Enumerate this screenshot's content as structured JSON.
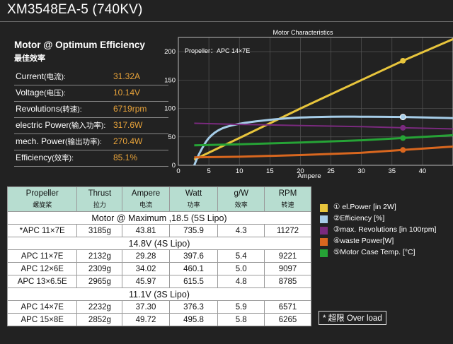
{
  "title": "XM3548EA-5 (740KV)",
  "optimum": {
    "heading": "Motor @ Optimum Efficiency",
    "subheading": "最佳效率",
    "rows": [
      {
        "label": "Current",
        "label_cn": "(电流):",
        "value": "31.32A"
      },
      {
        "label": "Voltage",
        "label_cn": "(电压):",
        "value": "10.14V"
      },
      {
        "label": "Revolutions",
        "label_cn": "(转速):",
        "value": "6719rpm"
      },
      {
        "label": "electric Power",
        "label_cn": "(输入功率):",
        "value": "317.6W"
      },
      {
        "label": "mech. Power",
        "label_cn": "(输出功率):",
        "value": "270.4W"
      },
      {
        "label": "Efficiency",
        "label_cn": "(效率):",
        "value": "85.1%"
      }
    ]
  },
  "colors": {
    "power": "#e8c53c",
    "efficiency": "#a6cde8",
    "revolutions": "#7a2a7e",
    "waste": "#d9671f",
    "temp": "#26a336",
    "highlight": "#e8a33a",
    "header_bg": "#b7ddd0"
  },
  "chart_data": {
    "type": "line",
    "title": "Motor Characteristics",
    "annotation": "Propeller：APC 14×7E",
    "xlabel": "Ampere",
    "ylabel": "",
    "xlim": [
      0,
      45
    ],
    "ylim": [
      0,
      225
    ],
    "x_ticks": [
      0,
      5,
      10,
      15,
      20,
      25,
      30,
      35,
      40
    ],
    "y_ticks": [
      0,
      50,
      100,
      150,
      200
    ],
    "grid": true,
    "marker_x": 36.8,
    "series": [
      {
        "name": "el.Power [in 2W]",
        "marker": "①",
        "color_key": "power",
        "x": [
          2.6,
          10,
          20,
          30,
          36.8,
          45
        ],
        "y": [
          10,
          48,
          100,
          150,
          184,
          222
        ]
      },
      {
        "name": "Efficiency [%]",
        "marker": "②",
        "color_key": "efficiency",
        "x": [
          2.6,
          3.5,
          5,
          7,
          10,
          15,
          20,
          25,
          30,
          36.8,
          45
        ],
        "y": [
          0,
          22,
          48,
          64,
          73,
          80,
          84,
          85.5,
          85.5,
          85,
          83
        ]
      },
      {
        "name": "max. Revolutions [in 100rpm]",
        "marker": "③",
        "color_key": "revolutions",
        "x": [
          2.6,
          10,
          20,
          30,
          36.8,
          45
        ],
        "y": [
          74,
          72,
          70,
          68,
          66,
          64
        ]
      },
      {
        "name": "waste Power[W]",
        "marker": "④",
        "color_key": "waste",
        "x": [
          2.6,
          10,
          20,
          30,
          36.8,
          45
        ],
        "y": [
          14,
          15,
          18,
          22,
          27,
          33
        ]
      },
      {
        "name": "Motor Case Temp. [°C]",
        "marker": "⑤",
        "color_key": "temp",
        "x": [
          2.6,
          10,
          20,
          30,
          36.8,
          45
        ],
        "y": [
          35,
          37,
          40,
          44,
          48,
          53
        ]
      }
    ]
  },
  "table": {
    "headers": [
      {
        "label": "Propeller",
        "sub": "螺旋桨"
      },
      {
        "label": "Thrust",
        "sub": "拉力"
      },
      {
        "label": "Ampere",
        "sub": "电流"
      },
      {
        "label": "Watt",
        "sub": "功率"
      },
      {
        "label": "g/W",
        "sub": "效率"
      },
      {
        "label": "RPM",
        "sub": "转速"
      }
    ],
    "sections": [
      {
        "title": "Motor @ Maximum ,18.5 (5S Lipo)",
        "rows": [
          [
            "*APC 11×7E",
            "3185g",
            "43.81",
            "735.9",
            "4.3",
            "11272"
          ]
        ]
      },
      {
        "title": "14.8V (4S Lipo)",
        "rows": [
          [
            "APC 11×7E",
            "2132g",
            "29.28",
            "397.6",
            "5.4",
            "9221"
          ],
          [
            "APC 12×6E",
            "2309g",
            "34.02",
            "460.1",
            "5.0",
            "9097"
          ],
          [
            "APC 13×6.5E",
            "2965g",
            "45.97",
            "615.5",
            "4.8",
            "8785"
          ]
        ]
      },
      {
        "title": "11.1V (3S Lipo)",
        "rows": [
          [
            "APC 14×7E",
            "2232g",
            "37.30",
            "376.3",
            "5.9",
            "6571"
          ],
          [
            "APC 15×8E",
            "2852g",
            "49.72",
            "495.8",
            "5.8",
            "6265"
          ]
        ]
      }
    ]
  },
  "legend": [
    {
      "text": "① el.Power [in 2W]",
      "color_key": "power"
    },
    {
      "text": "②Efficiency [%]",
      "color_key": "efficiency"
    },
    {
      "text": "③max. Revolutions [in 100rpm]",
      "color_key": "revolutions"
    },
    {
      "text": "④waste Power[W]",
      "color_key": "waste"
    },
    {
      "text": "⑤Motor Case Temp. [°C]",
      "color_key": "temp"
    }
  ],
  "overload_note": "* 超限 Over load"
}
